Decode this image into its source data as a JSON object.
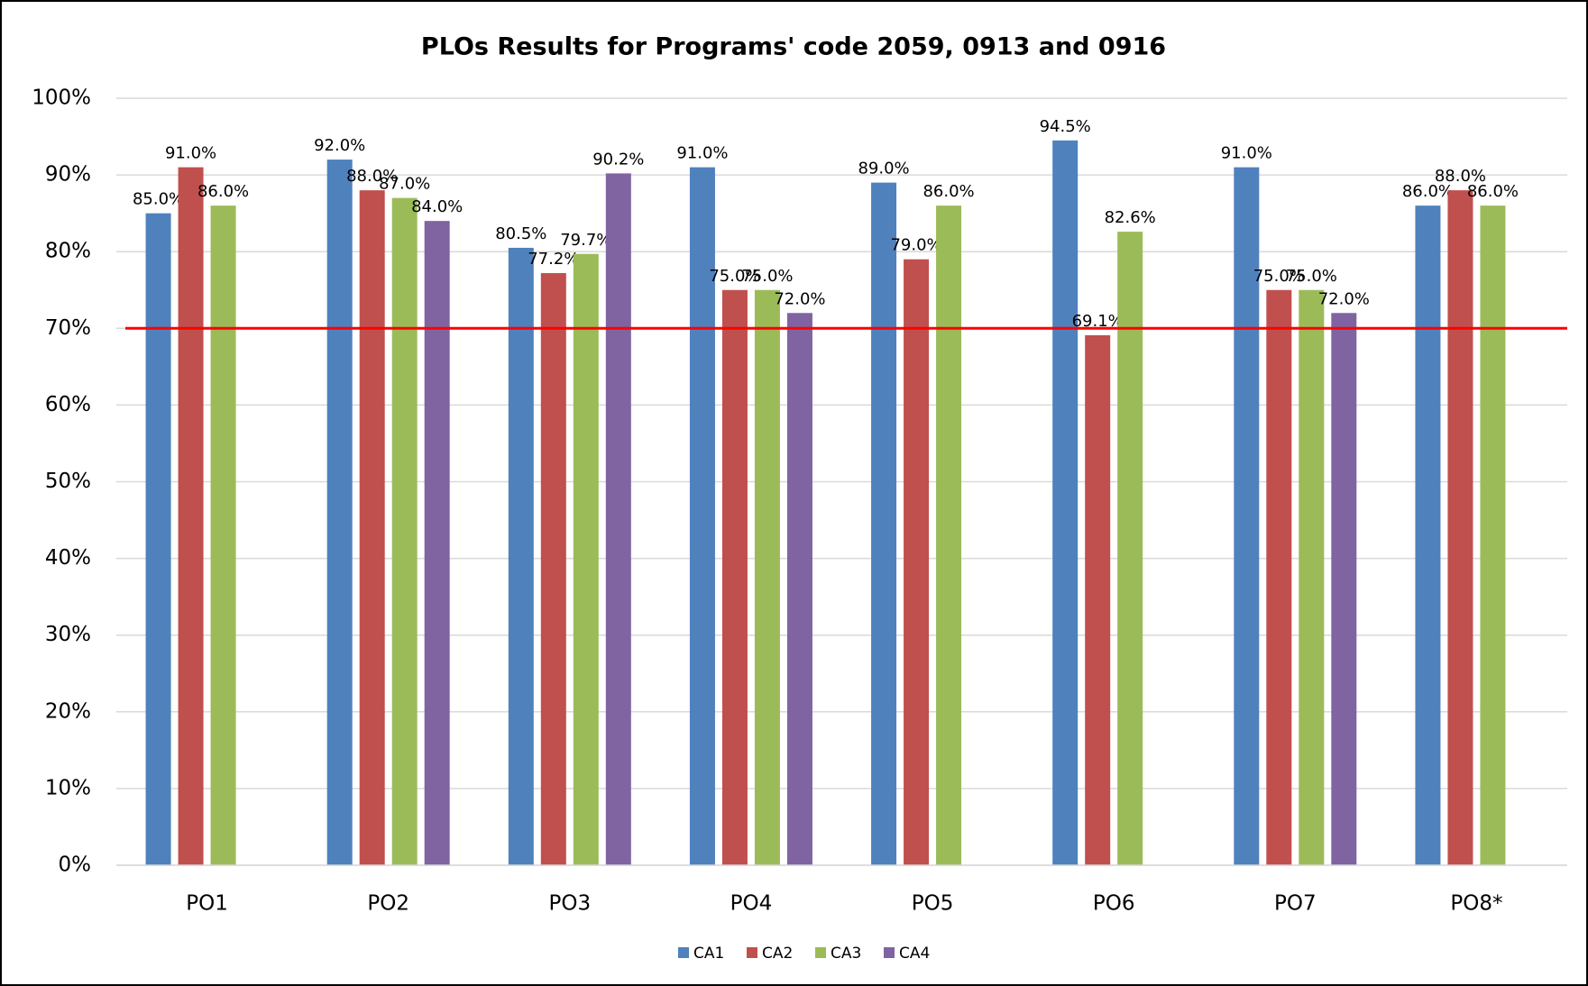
{
  "chart_data": {
    "type": "bar",
    "title": "PLOs Results for Programs' code 2059, 0913 and 0916",
    "categories": [
      "PO1",
      "PO2",
      "PO3",
      "PO4",
      "PO5",
      "PO6",
      "PO7",
      "PO8*"
    ],
    "series": [
      {
        "name": "CA1",
        "color": "#4f81bd",
        "values": [
          85,
          92,
          80.5,
          91,
          89,
          94.5,
          91,
          86
        ],
        "value_labels": [
          "85.0%",
          "92.0%",
          "80.5%",
          "91.0%",
          "89.0%",
          "94.5%",
          "91.0%",
          "86.0%"
        ]
      },
      {
        "name": "CA2",
        "color": "#c0504d",
        "values": [
          91,
          88,
          77.2,
          75,
          79,
          69.1,
          75,
          88
        ],
        "value_labels": [
          "91.0%",
          "88.0%",
          "77.2%",
          "75.0%",
          "79.0%",
          "69.1%",
          "75.0%",
          "88.0%"
        ]
      },
      {
        "name": "CA3",
        "color": "#9bbb59",
        "values": [
          86,
          87,
          79.7,
          75,
          86,
          82.6,
          75,
          86
        ],
        "value_labels": [
          "86.0%",
          "87.0%",
          "79.7%",
          "75.0%",
          "86.0%",
          "82.6%",
          "75.0%",
          "86.0%"
        ]
      },
      {
        "name": "CA4",
        "color": "#8064a2",
        "values": [
          null,
          84,
          90.2,
          72,
          null,
          null,
          72,
          null
        ],
        "value_labels": [
          null,
          "84.0%",
          "90.2%",
          "72.0%",
          null,
          null,
          "72.0%",
          null
        ]
      }
    ],
    "ylim": [
      0,
      100
    ],
    "yticks": [
      {
        "value": 0,
        "label": "0%"
      },
      {
        "value": 10,
        "label": "10%"
      },
      {
        "value": 20,
        "label": "20%"
      },
      {
        "value": 30,
        "label": "30%"
      },
      {
        "value": 40,
        "label": "40%"
      },
      {
        "value": 50,
        "label": "50%"
      },
      {
        "value": 60,
        "label": "60%"
      },
      {
        "value": 70,
        "label": "70%"
      },
      {
        "value": 80,
        "label": "80%"
      },
      {
        "value": 90,
        "label": "90%"
      },
      {
        "value": 100,
        "label": "100%"
      }
    ],
    "grid": true,
    "reference_line": {
      "value": 70,
      "color": "#ff0000"
    },
    "legend": "bottom"
  }
}
